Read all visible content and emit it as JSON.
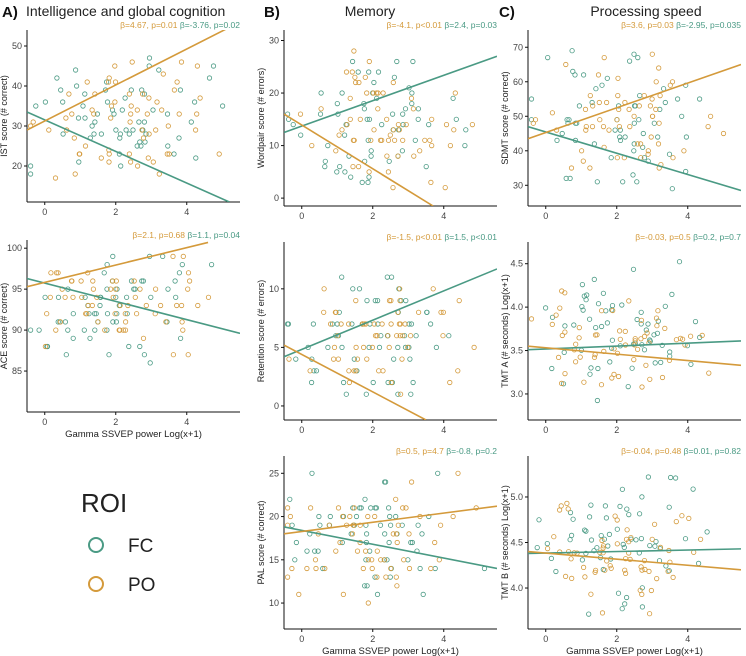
{
  "colors": {
    "FC": "#4a9a84",
    "PO": "#d49a3b",
    "axis": "#111111"
  },
  "headers": [
    {
      "letter": "A)",
      "title": "Intelligence and global cognition"
    },
    {
      "letter": "B)",
      "title": "Memory"
    },
    {
      "letter": "C)",
      "title": "Processing speed"
    }
  ],
  "legend": {
    "title": "ROI",
    "items": [
      "FC",
      "PO"
    ]
  },
  "chart_data": [
    {
      "type": "scatter",
      "panel": "A1",
      "ylabel": "IST score (# correct)",
      "xlabel": "",
      "xlim": [
        -0.5,
        5.5
      ],
      "ylim": [
        11,
        54
      ],
      "xticks": [
        0,
        2,
        4
      ],
      "yticks": [
        20,
        30,
        40,
        50
      ],
      "stats": {
        "PO": "β=4.67, p=0.01",
        "FC": "β=-3.76, p=0.02"
      },
      "fit": {
        "PO": [
          -0.5,
          29,
          5.5,
          56
        ],
        "FC": [
          -0.5,
          33.5,
          5.2,
          11
        ]
      },
      "fc_range": [
        15,
        48
      ],
      "po_range": [
        15,
        50
      ]
    },
    {
      "type": "scatter",
      "panel": "A2",
      "ylabel": "ACE score (# correct)",
      "xlabel": "Gamma SSVEP power Log(x+1)",
      "xlim": [
        -0.5,
        5.5
      ],
      "ylim": [
        80,
        101
      ],
      "xticks": [
        0,
        2,
        4
      ],
      "yticks": [
        85,
        90,
        95,
        100
      ],
      "stats": {
        "PO": "β=2.1, p=0.68",
        "FC": "β=1.1, p=0.04"
      },
      "fit": {
        "PO": [
          -0.5,
          95.3,
          4.6,
          100.7
        ],
        "FC": [
          -0.5,
          96.3,
          5.5,
          89.6
        ]
      },
      "fc_range": [
        86,
        100
      ],
      "po_range": [
        86,
        100
      ]
    },
    {
      "type": "scatter",
      "panel": "B1",
      "ylabel": "Wordpair score (# errors)",
      "xlabel": "",
      "xlim": [
        -0.5,
        5.5
      ],
      "ylim": [
        -1.5,
        32
      ],
      "xticks": [
        0,
        2,
        4
      ],
      "yticks": [
        0,
        10,
        20,
        30
      ],
      "stats": {
        "PO": "β=-4.1, p<0.01",
        "FC": "β=2.4, p=0.03"
      },
      "fit": {
        "PO": [
          -0.5,
          16,
          3.7,
          -1.5
        ],
        "FC": [
          -0.5,
          12.5,
          5.5,
          27
        ]
      },
      "fc_range": [
        0,
        28
      ],
      "po_range": [
        0,
        28
      ]
    },
    {
      "type": "scatter",
      "panel": "B2",
      "ylabel": "Retention score (# errors)",
      "xlabel": "",
      "xlim": [
        -0.5,
        5.5
      ],
      "ylim": [
        -1.2,
        14
      ],
      "xticks": [
        0,
        2,
        4
      ],
      "yticks": [
        0,
        5,
        10
      ],
      "stats": {
        "PO": "β=-1.5, p<0.01",
        "FC": "β=1.5, p<0.01"
      },
      "fit": {
        "PO": [
          -0.5,
          5.2,
          3.5,
          -1.2
        ],
        "FC": [
          -0.5,
          4.2,
          5.5,
          11.7
        ]
      },
      "fc_range": [
        0,
        12
      ],
      "po_range": [
        0,
        12
      ]
    },
    {
      "type": "scatter",
      "panel": "B3",
      "ylabel": "PAL score (# correct)",
      "xlabel": "Gamma SSVEP power Log(x+1)",
      "xlim": [
        -0.5,
        5.5
      ],
      "ylim": [
        7,
        27
      ],
      "xticks": [
        0,
        2,
        4
      ],
      "yticks": [
        10,
        15,
        20,
        25
      ],
      "stats": {
        "PO": "β=0.5, p=4.7",
        "FC": "β=-0.8, p=0.2"
      },
      "fit": {
        "PO": [
          -0.5,
          18,
          5.5,
          21.2
        ],
        "FC": [
          -0.5,
          18.8,
          5.5,
          14
        ]
      },
      "fc_range": [
        10,
        26
      ],
      "po_range": [
        9,
        26
      ]
    },
    {
      "type": "scatter",
      "panel": "C1",
      "ylabel": "SDMT score (# correct)",
      "xlabel": "",
      "xlim": [
        -0.5,
        5.5
      ],
      "ylim": [
        24,
        75
      ],
      "xticks": [
        0,
        2,
        4
      ],
      "yticks": [
        30,
        40,
        50,
        60,
        70
      ],
      "stats": {
        "PO": "β=3.6, p=0.03",
        "FC": "β=-2.95, p=0.035"
      },
      "fit": {
        "PO": [
          -0.5,
          43.5,
          5.5,
          65
        ],
        "FC": [
          -0.5,
          47,
          5.5,
          28.5
        ]
      },
      "fc_range": [
        27,
        71
      ],
      "po_range": [
        30,
        70
      ]
    },
    {
      "type": "scatter",
      "panel": "C2",
      "ylabel": "TMT A (# seconds) Log(x+1)",
      "xlabel": "",
      "xlim": [
        -0.5,
        5.5
      ],
      "ylim": [
        2.7,
        4.75
      ],
      "xticks": [
        0,
        2,
        4
      ],
      "yticks": [
        3.0,
        3.5,
        4.0,
        4.5
      ],
      "stats": {
        "PO": "β=-0.03, p=0.5",
        "FC": "β=0.2, p=0.7"
      },
      "fit": {
        "PO": [
          -0.5,
          3.55,
          5.5,
          3.33
        ],
        "FC": [
          -0.5,
          3.51,
          5.5,
          3.61
        ]
      },
      "fc_range": [
        2.9,
        4.6
      ],
      "po_range": [
        2.9,
        4.3
      ]
    },
    {
      "type": "scatter",
      "panel": "C3",
      "ylabel": "TMT B (# seconds) Log(x+1)",
      "xlabel": "Gamma SSVEP power Log(x+1)",
      "xlim": [
        -0.5,
        5.5
      ],
      "ylim": [
        3.55,
        5.45
      ],
      "xticks": [
        0,
        2,
        4
      ],
      "yticks": [
        4.0,
        4.5,
        5.0
      ],
      "stats": {
        "PO": "β=-0.04, p=0.48",
        "FC": "β=0.01, p=0.82"
      },
      "fit": {
        "PO": [
          -0.5,
          4.4,
          5.5,
          4.2
        ],
        "FC": [
          -0.5,
          4.38,
          5.5,
          4.43
        ]
      },
      "fc_range": [
        3.7,
        5.3
      ],
      "po_range": [
        3.7,
        5.1
      ]
    }
  ]
}
